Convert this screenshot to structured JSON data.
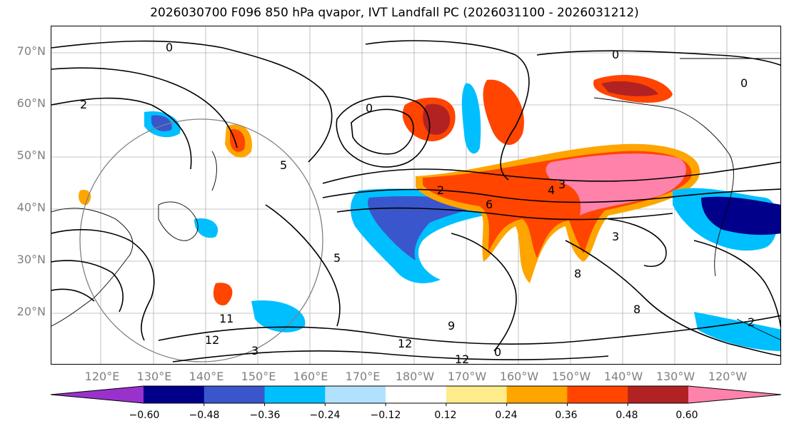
{
  "title": "2026030700 F096 850 hPa qvapor, IVT Landfall PC (2026031100 - 2026031212)",
  "map": {
    "lat_labels": [
      "70°N",
      "60°N",
      "50°N",
      "40°N",
      "30°N",
      "20°N"
    ],
    "lon_labels": [
      "120°E",
      "130°E",
      "140°E",
      "150°E",
      "160°E",
      "170°E",
      "180°W",
      "170°W",
      "160°W",
      "150°W",
      "140°W",
      "130°W",
      "120°W"
    ],
    "contour_labels": [
      "0",
      "0",
      "0",
      "0",
      "2",
      "2",
      "2",
      "3",
      "3",
      "3",
      "4",
      "5",
      "5",
      "6",
      "8",
      "8",
      "9",
      "11",
      "12",
      "12",
      "12",
      "0"
    ]
  },
  "colorbar": {
    "tick_labels": [
      "−0.60",
      "−0.48",
      "−0.36",
      "−0.24",
      "−0.12",
      "0.12",
      "0.24",
      "0.36",
      "0.48",
      "0.60"
    ],
    "colors": [
      "#9932cc",
      "#00008b",
      "#3a56cc",
      "#00bfff",
      "#b0e2ff",
      "#ffffff",
      "#ffec8b",
      "#ffa500",
      "#ff4500",
      "#b22222",
      "#ff82ab"
    ]
  }
}
